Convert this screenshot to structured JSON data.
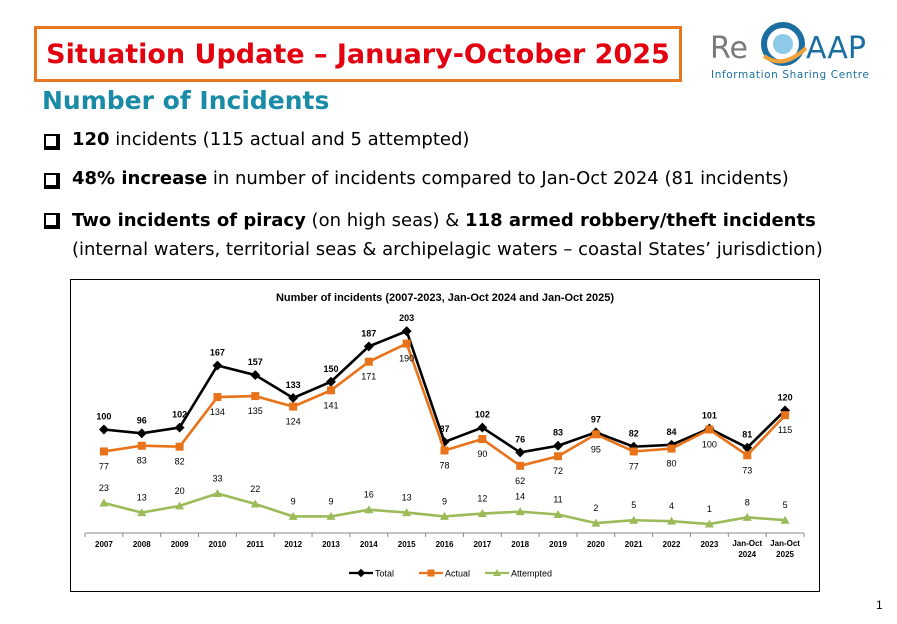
{
  "header": {
    "title": "Situation Update – January-October 2025",
    "logo_text": "ReCAAP",
    "logo_tagline": "Information Sharing Centre"
  },
  "subtitle": "Number of Incidents",
  "bullets": [
    {
      "bold": "120",
      "text": " incidents (115 actual and 5 attempted)"
    },
    {
      "bold": "48% increase",
      "text": " in number of incidents compared to Jan-Oct 2024 (81 incidents)"
    },
    {
      "bold": "Two incidents of piracy",
      "text": " (on high seas) & ",
      "bold2": "118 armed robbery/theft incidents",
      "line2": "(internal waters, territorial seas & archipelagic waters – coastal States’ jurisdiction)"
    }
  ],
  "page_number": "1",
  "colors": {
    "total": "#000000",
    "actual": "#e8731a",
    "attempted": "#9bbb59",
    "title_red": "#e3000f",
    "accent_teal": "#1a8ba6",
    "title_border": "#e87722"
  },
  "chart_data": {
    "type": "line",
    "title": "Number of incidents (2007-2023, Jan-Oct 2024 and Jan-Oct 2025)",
    "categories": [
      "2007",
      "2008",
      "2009",
      "2010",
      "2011",
      "2012",
      "2013",
      "2014",
      "2015",
      "2016",
      "2017",
      "2018",
      "2019",
      "2020",
      "2021",
      "2022",
      "2023",
      "Jan-Oct 2024",
      "Jan-Oct 2025"
    ],
    "series": [
      {
        "name": "Total",
        "values": [
          100,
          96,
          102,
          167,
          157,
          133,
          150,
          187,
          203,
          87,
          102,
          76,
          83,
          97,
          82,
          84,
          101,
          81,
          120
        ]
      },
      {
        "name": "Actual",
        "values": [
          77,
          83,
          82,
          134,
          135,
          124,
          141,
          171,
          190,
          78,
          90,
          62,
          72,
          95,
          77,
          80,
          100,
          73,
          115
        ]
      },
      {
        "name": "Attempted",
        "values": [
          23,
          13,
          20,
          33,
          22,
          9,
          9,
          16,
          13,
          9,
          12,
          14,
          11,
          2,
          5,
          4,
          1,
          8,
          5
        ]
      }
    ],
    "legend_position": "bottom",
    "grid": false
  }
}
